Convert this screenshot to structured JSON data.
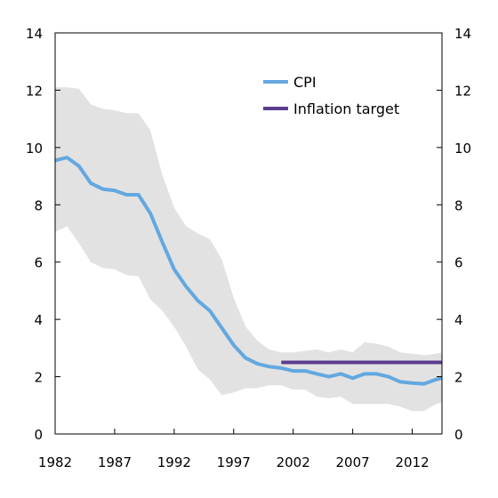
{
  "chart_data": {
    "type": "line",
    "x_ticks": [
      "1982",
      "1987",
      "1992",
      "1997",
      "2002",
      "2007",
      "2012"
    ],
    "y_ticks": [
      "0",
      "2",
      "4",
      "6",
      "8",
      "10",
      "12",
      "14"
    ],
    "ylim": [
      0,
      14
    ],
    "xlim": [
      1982,
      2014.5
    ],
    "grid": false,
    "legend_position": "top-right",
    "legend": {
      "cpi": "CPI",
      "target": "Inflation target"
    },
    "colors": {
      "cpi": "#63a8e0",
      "target": "#5b3d8f",
      "band": "#e2e2e2"
    },
    "series": [
      {
        "name": "CPI",
        "x": [
          1982,
          1983,
          1984,
          1985,
          1986,
          1987,
          1988,
          1989,
          1990,
          1991,
          1992,
          1993,
          1994,
          1995,
          1996,
          1997,
          1998,
          1999,
          2000,
          2001,
          2002,
          2003,
          2004,
          2005,
          2006,
          2007,
          2008,
          2009,
          2010,
          2011,
          2012,
          2013,
          2014,
          2014.5
        ],
        "values": [
          9.55,
          9.65,
          9.35,
          8.75,
          8.55,
          8.5,
          8.35,
          8.35,
          7.7,
          6.7,
          5.75,
          5.15,
          4.65,
          4.3,
          3.7,
          3.1,
          2.65,
          2.45,
          2.35,
          2.3,
          2.2,
          2.2,
          2.1,
          2.0,
          2.1,
          1.95,
          2.1,
          2.1,
          2.0,
          1.82,
          1.78,
          1.75,
          1.9,
          1.95
        ]
      },
      {
        "name": "Inflation target",
        "x": [
          2001,
          2014.5
        ],
        "values": [
          2.5,
          2.5
        ]
      }
    ],
    "band": {
      "x": [
        1982,
        1983,
        1984,
        1985,
        1986,
        1987,
        1988,
        1989,
        1990,
        1991,
        1992,
        1993,
        1994,
        1995,
        1996,
        1997,
        1998,
        1999,
        2000,
        2001,
        2002,
        2003,
        2004,
        2005,
        2006,
        2007,
        2008,
        2009,
        2010,
        2011,
        2012,
        2013,
        2014,
        2014.5
      ],
      "upper": [
        12.1,
        12.1,
        12.05,
        11.5,
        11.35,
        11.3,
        11.2,
        11.2,
        10.6,
        9.05,
        7.9,
        7.25,
        7.0,
        6.8,
        6.1,
        4.75,
        3.75,
        3.25,
        2.95,
        2.85,
        2.85,
        2.9,
        2.95,
        2.85,
        2.95,
        2.85,
        3.2,
        3.15,
        3.05,
        2.85,
        2.8,
        2.75,
        2.8,
        2.85
      ],
      "lower": [
        7.05,
        7.25,
        6.65,
        6.0,
        5.8,
        5.75,
        5.55,
        5.5,
        4.7,
        4.3,
        3.75,
        3.05,
        2.25,
        1.9,
        1.35,
        1.45,
        1.6,
        1.6,
        1.7,
        1.7,
        1.55,
        1.55,
        1.3,
        1.25,
        1.3,
        1.05,
        1.05,
        1.05,
        1.05,
        0.95,
        0.8,
        0.8,
        1.05,
        1.1
      ]
    }
  }
}
